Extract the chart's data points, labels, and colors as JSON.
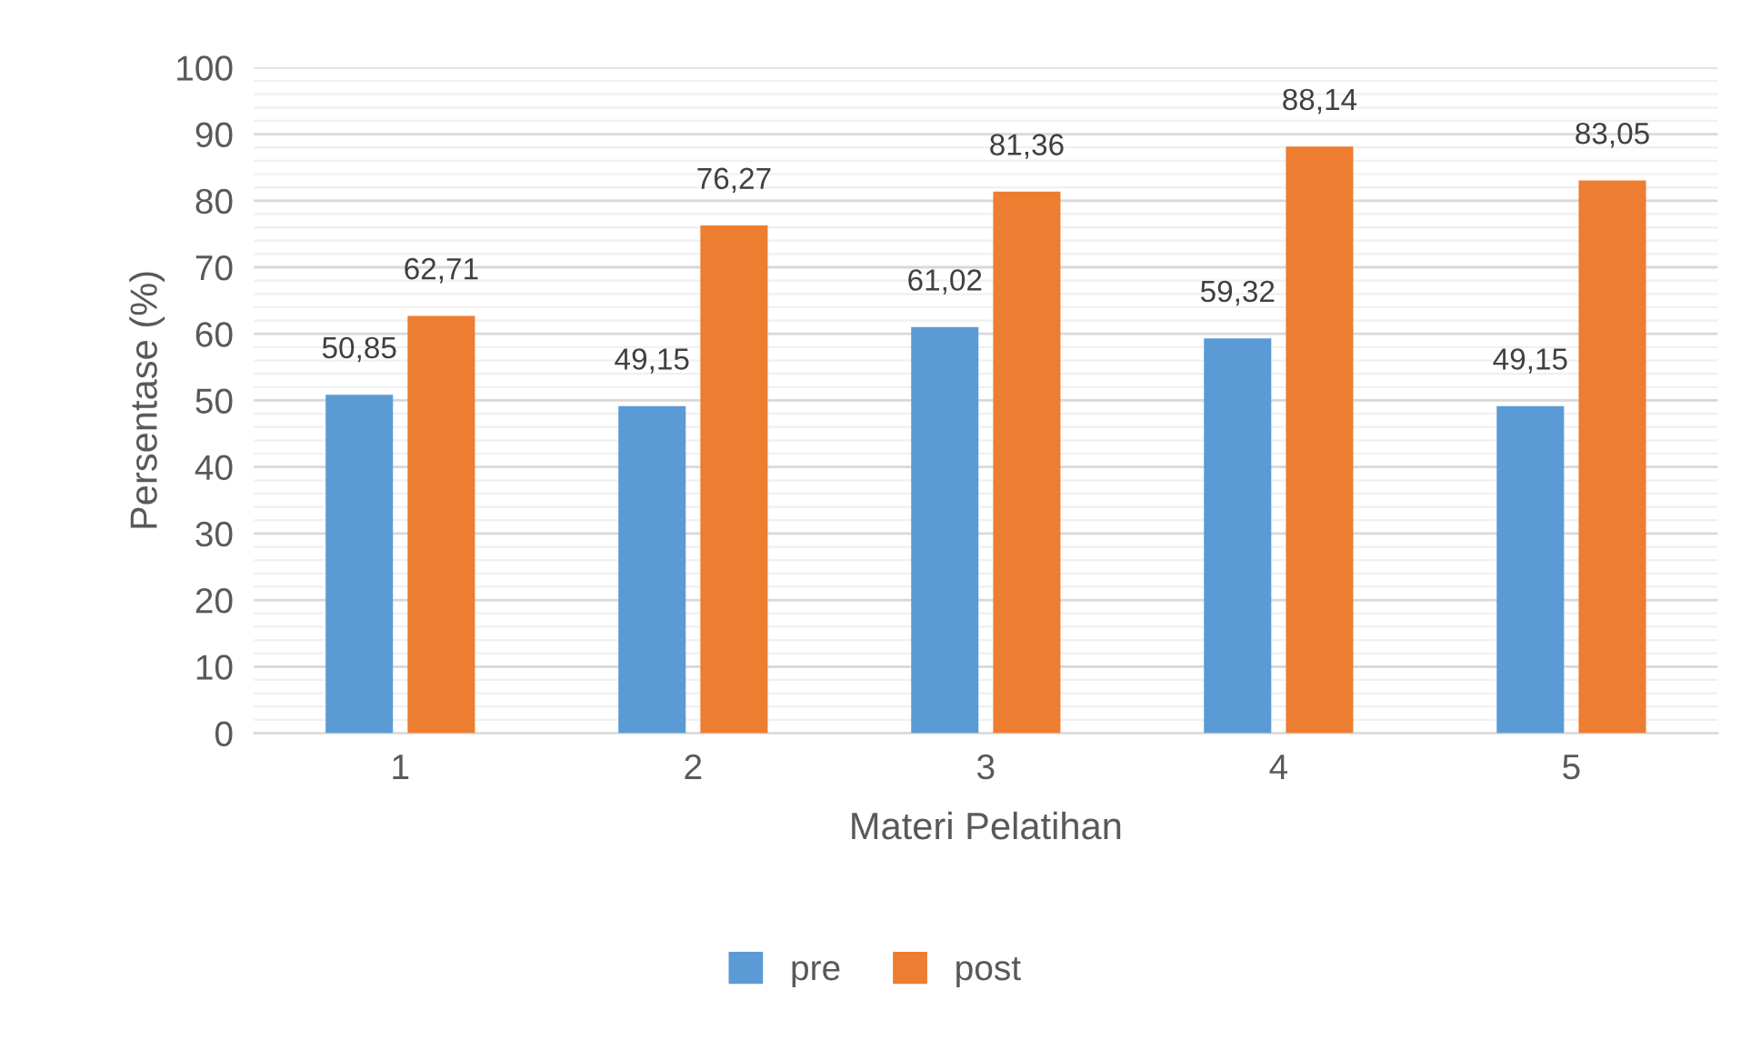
{
  "chart_data": {
    "type": "bar",
    "xlabel": "Materi Pelatihan",
    "ylabel": "Persentase (%)",
    "categories": [
      "1",
      "2",
      "3",
      "4",
      "5"
    ],
    "series": [
      {
        "name": "pre",
        "color": "#5b9bd5",
        "values": [
          50.85,
          49.15,
          61.02,
          59.32,
          49.15
        ],
        "value_labels": [
          "50,85",
          "49,15",
          "61,02",
          "59,32",
          "49,15"
        ]
      },
      {
        "name": "post",
        "color": "#ed7d31",
        "values": [
          62.71,
          76.27,
          81.36,
          88.14,
          83.05
        ],
        "value_labels": [
          "62,71",
          "76,27",
          "81,36",
          "88,14",
          "83,05"
        ]
      }
    ],
    "ylim": [
      0,
      100
    ],
    "yticks": [
      0,
      10,
      20,
      30,
      40,
      50,
      60,
      70,
      80,
      90,
      100
    ],
    "grid": "y",
    "legend": "bottom"
  }
}
